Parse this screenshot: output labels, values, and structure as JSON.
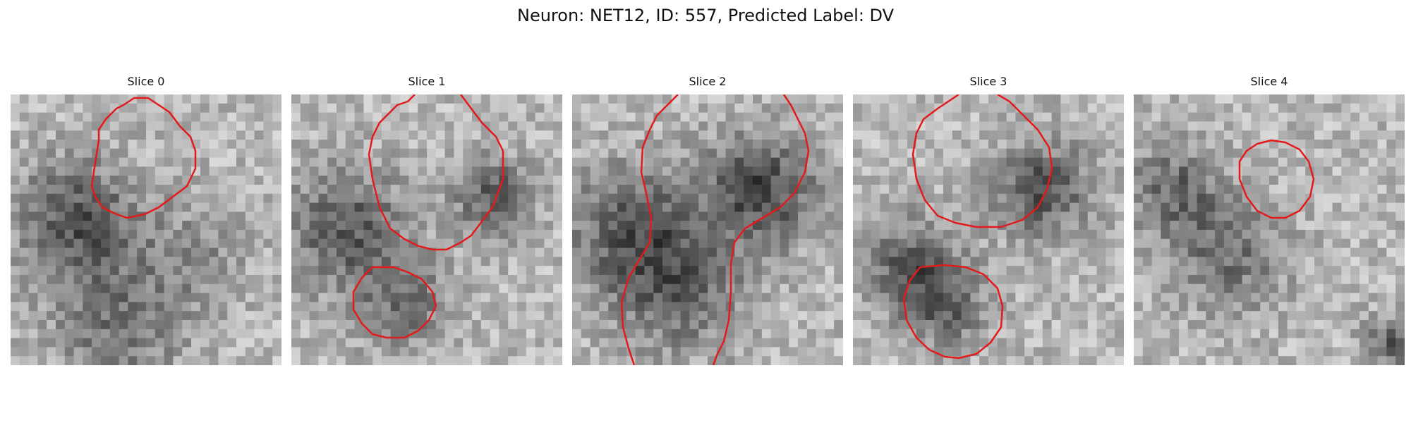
{
  "figure": {
    "title": "Neuron: NET12, ID: 557, Predicted Label: DV"
  },
  "panels": [
    {
      "title": "Slice 0"
    },
    {
      "title": "Slice 1"
    },
    {
      "title": "Slice 2"
    },
    {
      "title": "Slice 3"
    },
    {
      "title": "Slice 4"
    }
  ],
  "colors": {
    "contour": "#e31a1c",
    "background": "#ffffff"
  }
}
